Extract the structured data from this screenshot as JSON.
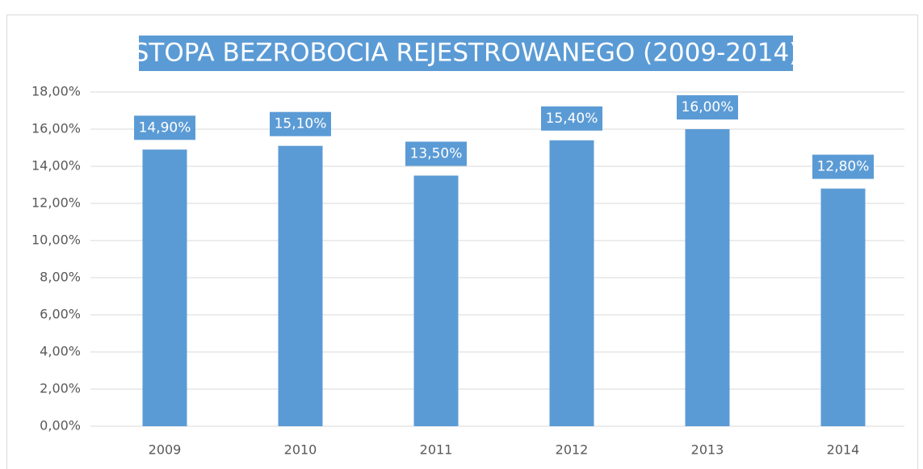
{
  "chart_data": {
    "type": "bar",
    "title": "STOPA BEZROBOCIA REJESTROWANEGO (2009-2014)",
    "categories": [
      "2009",
      "2010",
      "2011",
      "2012",
      "2013",
      "2014"
    ],
    "values": [
      14.9,
      15.1,
      13.5,
      15.4,
      16.0,
      12.8
    ],
    "value_labels": [
      "14,90%",
      "15,10%",
      "13,50%",
      "15,40%",
      "16,00%",
      "12,80%"
    ],
    "color": "#5b9bd5",
    "ylim": [
      0,
      18
    ],
    "yticks": [
      {
        "value": 0,
        "label": "0,00%"
      },
      {
        "value": 2,
        "label": "2,00%"
      },
      {
        "value": 4,
        "label": "4,00%"
      },
      {
        "value": 6,
        "label": "6,00%"
      },
      {
        "value": 8,
        "label": "8,00%"
      },
      {
        "value": 10,
        "label": "10,00%"
      },
      {
        "value": 12,
        "label": "12,00%"
      },
      {
        "value": 14,
        "label": "14,00%"
      },
      {
        "value": 16,
        "label": "16,00%"
      },
      {
        "value": 18,
        "label": "18,00%"
      }
    ],
    "grid": true
  }
}
